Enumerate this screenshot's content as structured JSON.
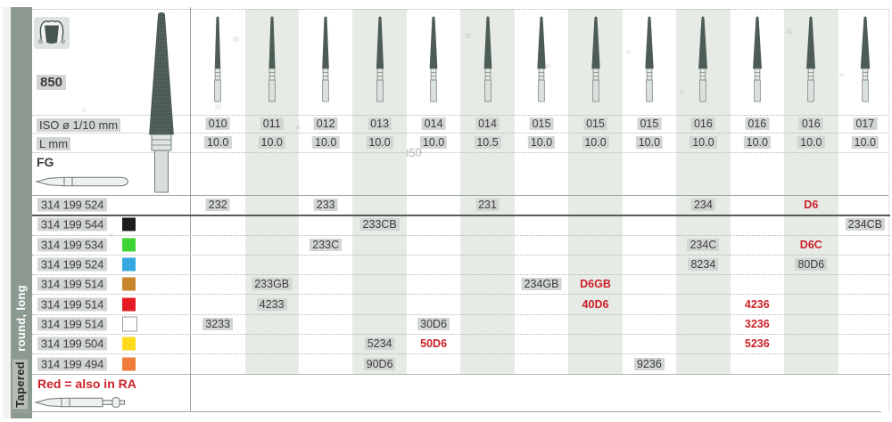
{
  "header": {
    "figure_number": "850",
    "ghost_text": "850",
    "iso_row_label": "ISO ø 1/10 mm",
    "length_row_label": "L mm",
    "shank_type_label": "FG"
  },
  "sidebar": {
    "group_label": "round, long",
    "section_label": "Tapered"
  },
  "columns": [
    {
      "iso": "010",
      "l": "10.0"
    },
    {
      "iso": "011",
      "l": "10.0"
    },
    {
      "iso": "012",
      "l": "10.0"
    },
    {
      "iso": "013",
      "l": "10.0"
    },
    {
      "iso": "014",
      "l": "10.0"
    },
    {
      "iso": "014",
      "l": "10.5"
    },
    {
      "iso": "015",
      "l": "10.0"
    },
    {
      "iso": "015",
      "l": "10.0"
    },
    {
      "iso": "015",
      "l": "10.0"
    },
    {
      "iso": "016",
      "l": "10.0"
    },
    {
      "iso": "016",
      "l": "10.0"
    },
    {
      "iso": "016",
      "l": "10.0"
    },
    {
      "iso": "017",
      "l": "10.0"
    }
  ],
  "rows": [
    {
      "code": "314 199 524",
      "swatch": null,
      "cells": [
        {
          "col": 1,
          "text": "232"
        },
        {
          "col": 3,
          "text": "233"
        },
        {
          "col": 6,
          "text": "231"
        },
        {
          "col": 10,
          "text": "234"
        },
        {
          "col": 12,
          "text": "D6",
          "red": true
        }
      ]
    },
    {
      "code": "314 199 544",
      "swatch": "#1d1d1d",
      "cells": [
        {
          "col": 4,
          "text": "233CB"
        },
        {
          "col": 13,
          "text": "234CB"
        }
      ]
    },
    {
      "code": "314 199 534",
      "swatch": "#3fd435",
      "cells": [
        {
          "col": 3,
          "text": "233C"
        },
        {
          "col": 10,
          "text": "234C"
        },
        {
          "col": 12,
          "text": "D6C",
          "red": true
        }
      ]
    },
    {
      "code": "314 199 524",
      "swatch": "#35a8e0",
      "cells": [
        {
          "col": 10,
          "text": "8234"
        },
        {
          "col": 12,
          "text": "80D6"
        }
      ]
    },
    {
      "code": "314 199 514",
      "swatch": "#c8862c",
      "cells": [
        {
          "col": 2,
          "text": "233GB"
        },
        {
          "col": 7,
          "text": "234GB"
        },
        {
          "col": 8,
          "text": "D6GB",
          "red": true
        }
      ]
    },
    {
      "code": "314 199 514",
      "swatch": "#e51a24",
      "cells": [
        {
          "col": 2,
          "text": "4233"
        },
        {
          "col": 8,
          "text": "40D6",
          "red": true
        },
        {
          "col": 11,
          "text": "4236",
          "red": true
        }
      ]
    },
    {
      "code": "314 199 514",
      "swatch": "#ffffff",
      "cells": [
        {
          "col": 1,
          "text": "3233"
        },
        {
          "col": 5,
          "text": "30D6"
        },
        {
          "col": 11,
          "text": "3236",
          "red": true
        }
      ]
    },
    {
      "code": "314 199 504",
      "swatch": "#ffd91c",
      "cells": [
        {
          "col": 4,
          "text": "5234"
        },
        {
          "col": 5,
          "text": "50D6",
          "red": true
        },
        {
          "col": 11,
          "text": "5236",
          "red": true
        }
      ]
    },
    {
      "code": "314 199 494",
      "swatch": "#ef7d3a",
      "cells": [
        {
          "col": 4,
          "text": "90D6"
        },
        {
          "col": 9,
          "text": "9236"
        }
      ]
    }
  ],
  "footnote": {
    "text": "Red = also in RA"
  },
  "colors": {
    "accent_red": "#cc2128",
    "text": "#3c3c3c",
    "sidebar_band": "#8d9a92",
    "column_stripe": "#e6ebe6",
    "text_highlight": "#d2d6d2",
    "bur_dark": "#4d5c57",
    "bur_light": "#dbe1dd",
    "bur_outline": "#6b7771"
  }
}
